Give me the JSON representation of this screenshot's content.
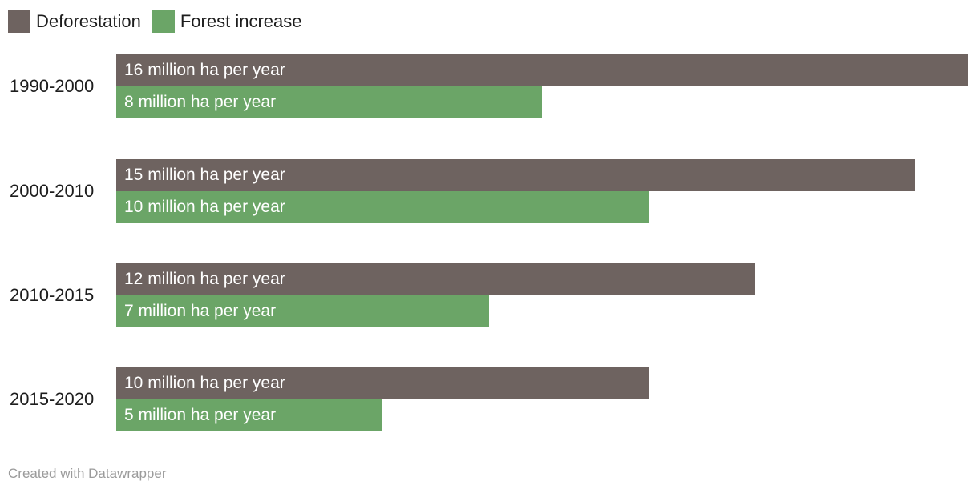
{
  "chart_data": {
    "type": "bar",
    "orientation": "horizontal",
    "title": "",
    "grid": false,
    "legend_position": "top-left",
    "unit": "million ha per year",
    "xlim": [
      0,
      16.2
    ],
    "categories": [
      "1990-2000",
      "2000-2010",
      "2010-2015",
      "2015-2020"
    ],
    "series": [
      {
        "name": "Deforestation",
        "color": "#6e6360",
        "values": [
          16,
          15,
          12,
          10
        ]
      },
      {
        "name": "Forest increase",
        "color": "#6ba567",
        "values": [
          8,
          10,
          7,
          5
        ]
      }
    ],
    "groups": [
      {
        "period": "1990-2000",
        "deforestation": {
          "value": 16,
          "label": "16 million ha per year"
        },
        "forest_increase": {
          "value": 8,
          "label": "8 million ha per year"
        }
      },
      {
        "period": "2000-2010",
        "deforestation": {
          "value": 15,
          "label": "15 million ha per year"
        },
        "forest_increase": {
          "value": 10,
          "label": "10 million ha per year"
        }
      },
      {
        "period": "2010-2015",
        "deforestation": {
          "value": 12,
          "label": "12 million ha per year"
        },
        "forest_increase": {
          "value": 7,
          "label": "7 million ha per year"
        }
      },
      {
        "period": "2015-2020",
        "deforestation": {
          "value": 10,
          "label": "10 million ha per year"
        },
        "forest_increase": {
          "value": 5,
          "label": "5 million ha per year"
        }
      }
    ]
  },
  "footer": {
    "credit": "Created with Datawrapper",
    "color": "#9b9b9b"
  }
}
